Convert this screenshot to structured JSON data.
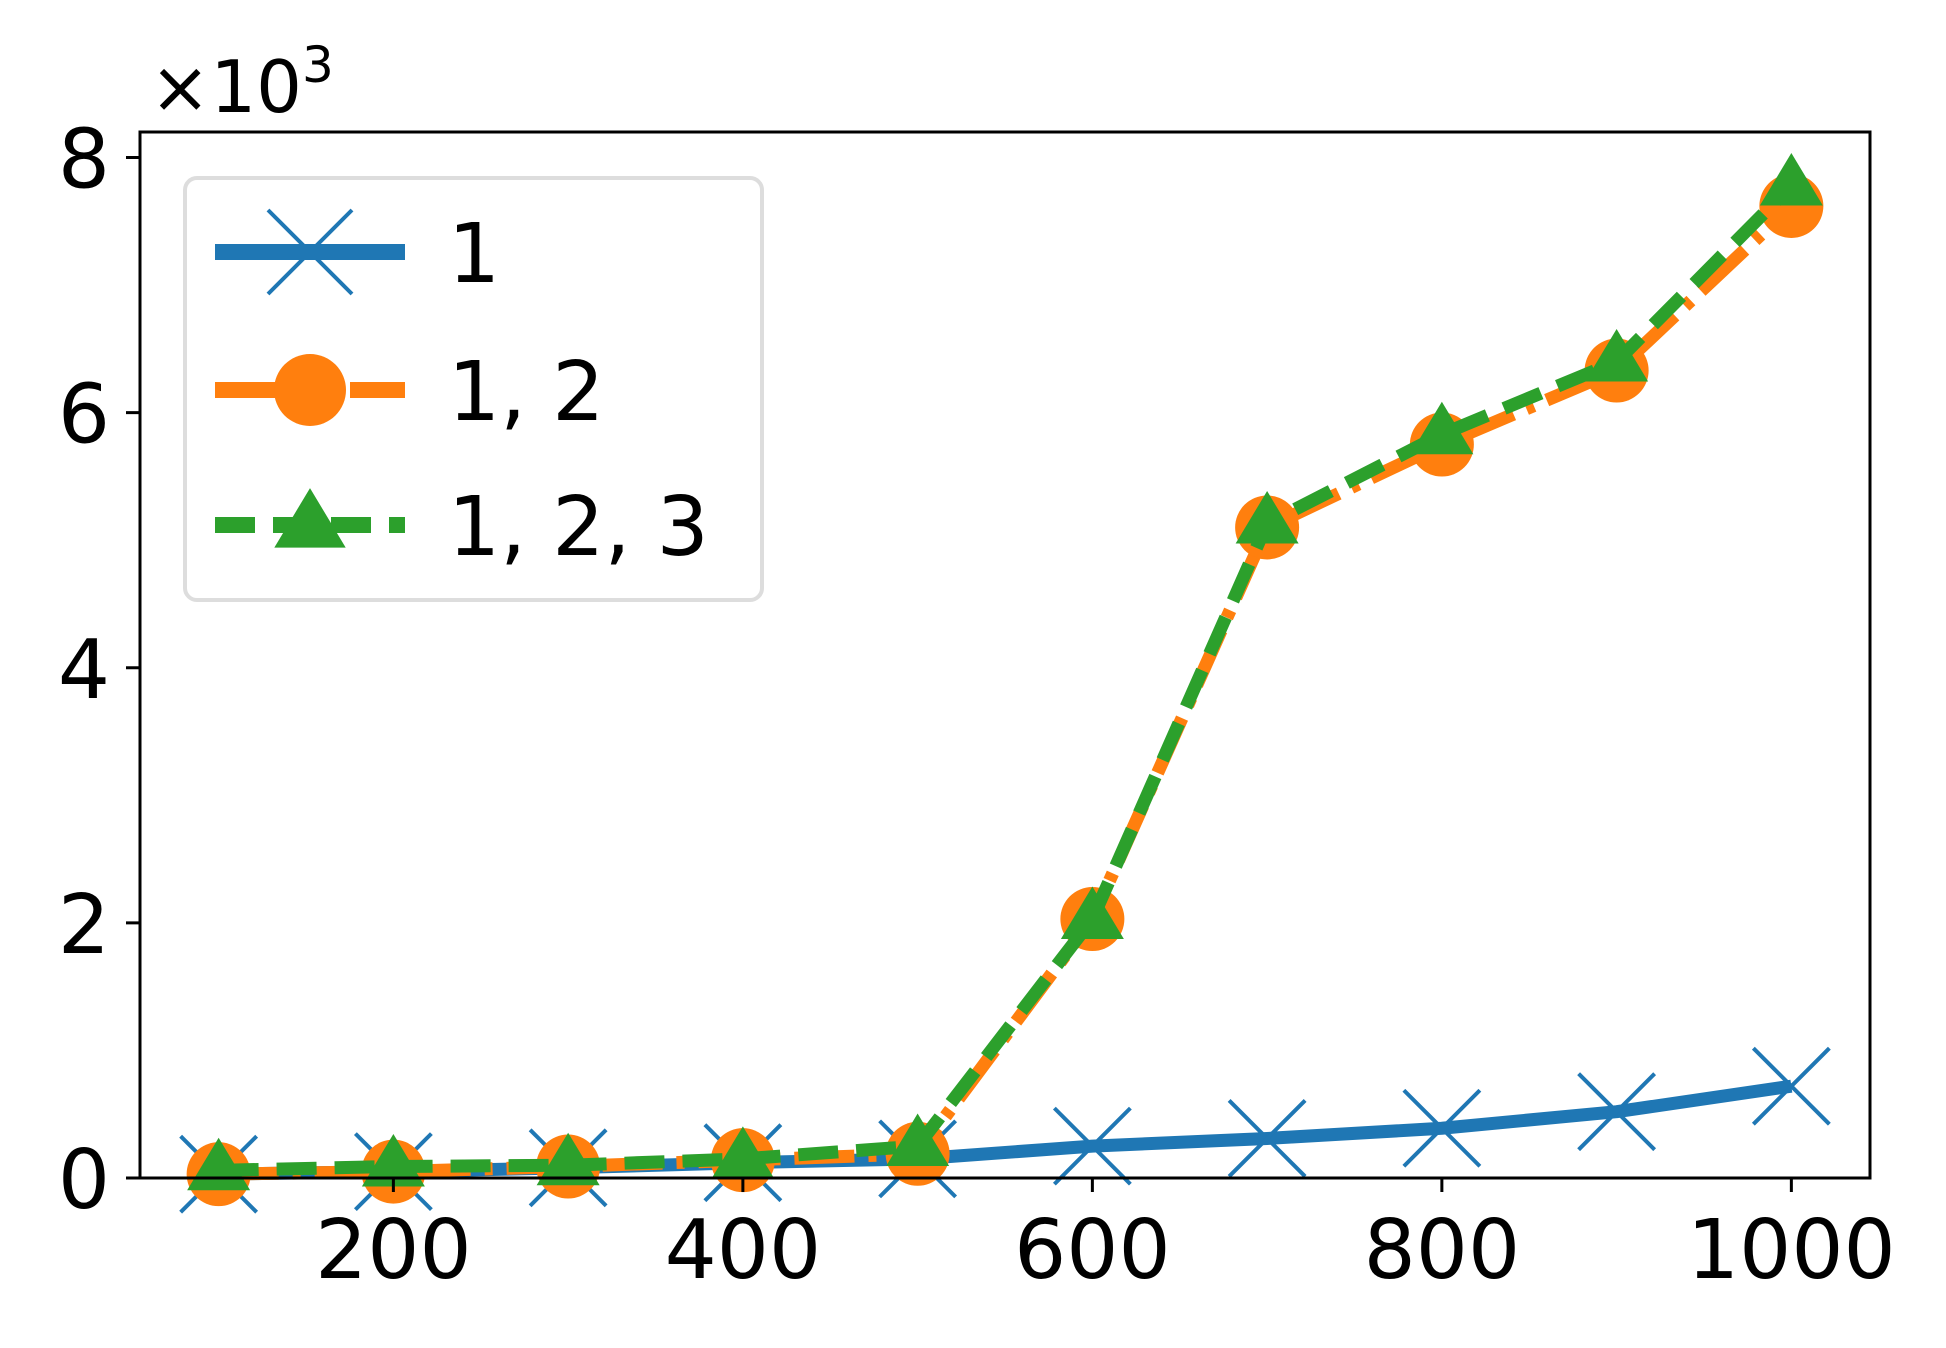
{
  "chart_data": {
    "type": "line",
    "title": "",
    "xlabel": "",
    "ylabel": "",
    "y_multiplier_base": "×10",
    "y_multiplier_exp": "3",
    "xlim": [
      55,
      1045
    ],
    "ylim": [
      0,
      8.2
    ],
    "x_ticks": [
      200,
      400,
      600,
      800,
      1000
    ],
    "y_ticks": [
      0,
      2,
      4,
      6,
      8
    ],
    "grid": false,
    "legend_position": "top-left",
    "x": [
      100,
      200,
      300,
      400,
      500,
      600,
      700,
      800,
      900,
      1000
    ],
    "series": [
      {
        "name": "1",
        "color": "#1f77b4",
        "marker": "x",
        "dash": "solid",
        "values": [
          0.03,
          0.05,
          0.08,
          0.12,
          0.15,
          0.25,
          0.31,
          0.39,
          0.52,
          0.72
        ]
      },
      {
        "name": "1, 2",
        "color": "#ff7f0e",
        "marker": "circle",
        "dash": "dashdot",
        "values": [
          0.03,
          0.05,
          0.09,
          0.14,
          0.19,
          2.03,
          5.1,
          5.75,
          6.33,
          7.62
        ]
      },
      {
        "name": "1, 2, 3",
        "color": "#2ca02c",
        "marker": "triangle",
        "dash": "dashed",
        "values": [
          0.06,
          0.09,
          0.1,
          0.15,
          0.25,
          2.03,
          5.13,
          5.83,
          6.4,
          7.78
        ]
      }
    ]
  }
}
